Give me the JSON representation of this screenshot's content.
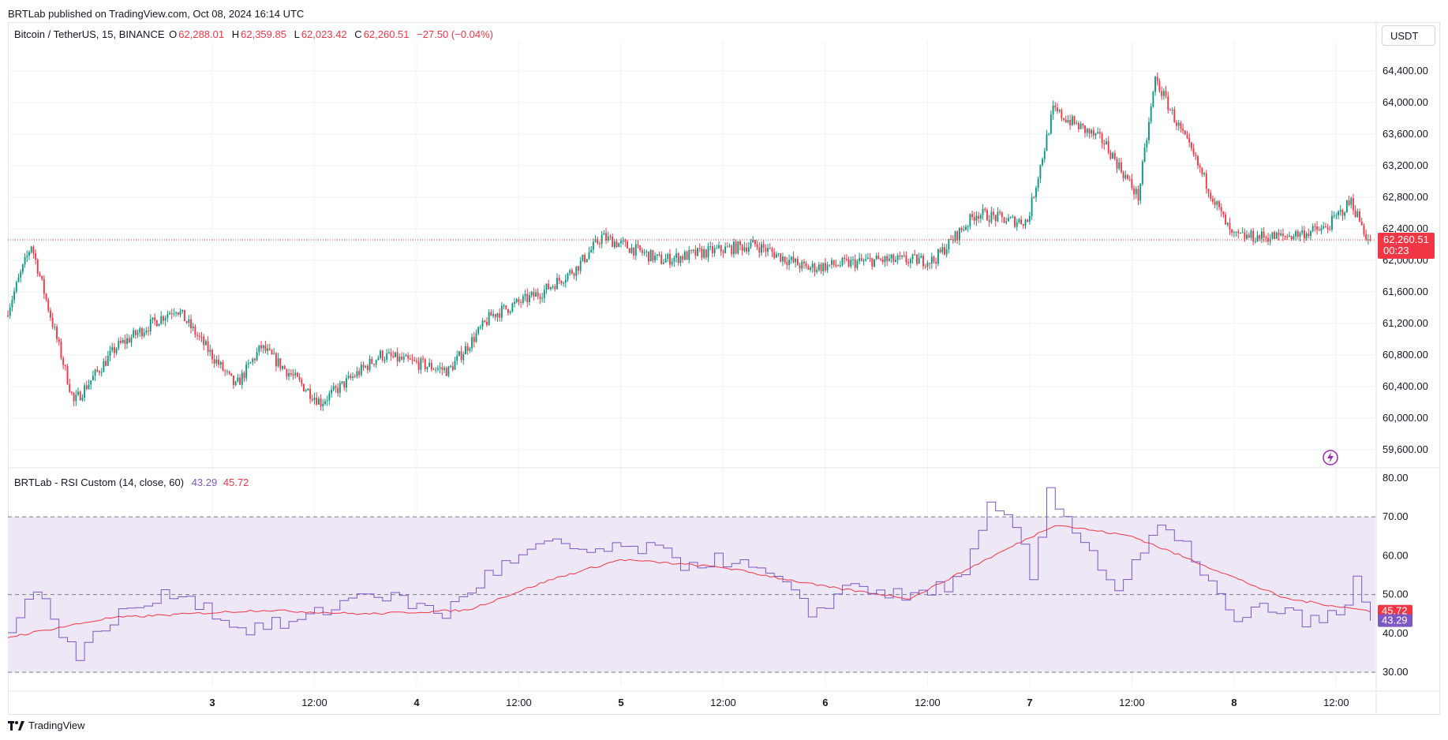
{
  "header": {
    "publish_line": "BRTLab published on TradingView.com, Oct 08, 2024 16:14 UTC",
    "symbol": "Bitcoin / TetherUS, 15, BINANCE",
    "o_label": "O",
    "o_value": "62,288.01",
    "h_label": "H",
    "h_value": "62,359.85",
    "l_label": "L",
    "l_value": "62,023.42",
    "c_label": "C",
    "c_value": "62,260.51",
    "change": "−27.50 (−0.04%)",
    "currency": "USDT"
  },
  "rsi_legend": {
    "name": "BRTLab - RSI Custom (14, close, 60)",
    "rsi_value": "43.29",
    "ma_value": "45.72"
  },
  "footer": {
    "brand": "TradingView"
  },
  "colors": {
    "up": "#089981",
    "down": "#f23645",
    "rsi_line": "#7e57c2",
    "rsi_ma": "#f23645",
    "band_fill": "#ede7f6",
    "ob_fill": "#e8f5e9"
  },
  "chart_data": [
    {
      "type": "candlestick",
      "title": "Bitcoin / TetherUS, 15, BINANCE",
      "ylim": [
        59400,
        64700
      ],
      "y_ticks": [
        "64,400.00",
        "64,000.00",
        "63,600.00",
        "63,200.00",
        "62,800.00",
        "62,400.00",
        "62,000.00",
        "61,600.00",
        "61,200.00",
        "60,800.00",
        "60,400.00",
        "60,000.00",
        "59,600.00"
      ],
      "x_ticks": [
        "3",
        "12:00",
        "4",
        "12:00",
        "5",
        "12:00",
        "6",
        "12:00",
        "7",
        "12:00",
        "8",
        "12:00"
      ],
      "last_price": "62,260.51",
      "countdown": "00:23",
      "approx_close_path": [
        {
          "t": "Oct 2 00:00",
          "price": 61300
        },
        {
          "t": "Oct 2 03:00",
          "price": 62200
        },
        {
          "t": "Oct 2 08:00",
          "price": 60200
        },
        {
          "t": "Oct 2 13:00",
          "price": 60900
        },
        {
          "t": "Oct 2 20:00",
          "price": 61400
        },
        {
          "t": "Oct 3 03:00",
          "price": 60400
        },
        {
          "t": "Oct 3 06:00",
          "price": 60900
        },
        {
          "t": "Oct 3 13:00",
          "price": 60200
        },
        {
          "t": "Oct 3 20:00",
          "price": 60800
        },
        {
          "t": "Oct 4 04:00",
          "price": 60600
        },
        {
          "t": "Oct 4 09:00",
          "price": 61300
        },
        {
          "t": "Oct 4 15:00",
          "price": 61600
        },
        {
          "t": "Oct 4 19:00",
          "price": 61900
        },
        {
          "t": "Oct 4 22:00",
          "price": 62300
        },
        {
          "t": "Oct 5 05:00",
          "price": 62000
        },
        {
          "t": "Oct 5 10:00",
          "price": 62100
        },
        {
          "t": "Oct 5 16:00",
          "price": 62200
        },
        {
          "t": "Oct 5 22:00",
          "price": 61900
        },
        {
          "t": "Oct 6 06:00",
          "price": 62000
        },
        {
          "t": "Oct 6 13:00",
          "price": 62000
        },
        {
          "t": "Oct 6 18:00",
          "price": 62600
        },
        {
          "t": "Oct 6 22:00",
          "price": 62500
        },
        {
          "t": "Oct 7 00:00",
          "price": 62500
        },
        {
          "t": "Oct 7 03:00",
          "price": 63900
        },
        {
          "t": "Oct 7 09:00",
          "price": 63500
        },
        {
          "t": "Oct 7 13:00",
          "price": 62800
        },
        {
          "t": "Oct 7 15:00",
          "price": 64300
        },
        {
          "t": "Oct 7 20:00",
          "price": 63200
        },
        {
          "t": "Oct 8 00:00",
          "price": 62300
        },
        {
          "t": "Oct 8 06:00",
          "price": 62300
        },
        {
          "t": "Oct 8 11:00",
          "price": 62400
        },
        {
          "t": "Oct 8 14:00",
          "price": 62750
        },
        {
          "t": "Oct 8 16:00",
          "price": 62260
        }
      ]
    },
    {
      "type": "line",
      "title": "BRTLab - RSI Custom (14, close, 60)",
      "ylim": [
        28,
        82
      ],
      "y_ticks": [
        "80.00",
        "70.00",
        "60.00",
        "50.00",
        "40.00",
        "30.00"
      ],
      "bands": {
        "upper": 70,
        "middle": 50,
        "lower": 30
      },
      "series": [
        {
          "name": "RSI",
          "current": "43.29",
          "points": [
            {
              "t": "Oct 2 00:00",
              "v": 42
            },
            {
              "t": "Oct 2 03:00",
              "v": 51
            },
            {
              "t": "Oct 2 08:00",
              "v": 34
            },
            {
              "t": "Oct 2 12:00",
              "v": 44
            },
            {
              "t": "Oct 2 20:00",
              "v": 51
            },
            {
              "t": "Oct 3 03:00",
              "v": 41
            },
            {
              "t": "Oct 3 10:00",
              "v": 43
            },
            {
              "t": "Oct 3 18:00",
              "v": 51
            },
            {
              "t": "Oct 4 03:00",
              "v": 45
            },
            {
              "t": "Oct 4 08:00",
              "v": 55
            },
            {
              "t": "Oct 4 15:00",
              "v": 63
            },
            {
              "t": "Oct 4 20:00",
              "v": 61
            },
            {
              "t": "Oct 5 03:00",
              "v": 62
            },
            {
              "t": "Oct 5 07:00",
              "v": 58
            },
            {
              "t": "Oct 5 12:00",
              "v": 59
            },
            {
              "t": "Oct 5 18:00",
              "v": 54
            },
            {
              "t": "Oct 5 22:00",
              "v": 45
            },
            {
              "t": "Oct 6 03:00",
              "v": 53
            },
            {
              "t": "Oct 6 09:00",
              "v": 49
            },
            {
              "t": "Oct 6 16:00",
              "v": 54
            },
            {
              "t": "Oct 6 19:00",
              "v": 72
            },
            {
              "t": "Oct 6 22:00",
              "v": 68
            },
            {
              "t": "Oct 7 00:00",
              "v": 54
            },
            {
              "t": "Oct 7 02:00",
              "v": 77
            },
            {
              "t": "Oct 7 05:00",
              "v": 67
            },
            {
              "t": "Oct 7 10:00",
              "v": 51
            },
            {
              "t": "Oct 7 15:00",
              "v": 67
            },
            {
              "t": "Oct 7 19:00",
              "v": 60
            },
            {
              "t": "Oct 8 00:00",
              "v": 42
            },
            {
              "t": "Oct 8 03:00",
              "v": 47
            },
            {
              "t": "Oct 8 09:00",
              "v": 43
            },
            {
              "t": "Oct 8 13:00",
              "v": 46
            },
            {
              "t": "Oct 8 14:00",
              "v": 54
            },
            {
              "t": "Oct 8 16:00",
              "v": 43.29
            }
          ]
        },
        {
          "name": "MA",
          "current": "45.72",
          "points": [
            {
              "t": "Oct 2 00:00",
              "v": 39
            },
            {
              "t": "Oct 2 12:00",
              "v": 44
            },
            {
              "t": "Oct 3 06:00",
              "v": 46
            },
            {
              "t": "Oct 3 18:00",
              "v": 45
            },
            {
              "t": "Oct 4 06:00",
              "v": 46
            },
            {
              "t": "Oct 4 16:00",
              "v": 54
            },
            {
              "t": "Oct 5 00:00",
              "v": 59
            },
            {
              "t": "Oct 5 12:00",
              "v": 57
            },
            {
              "t": "Oct 6 00:00",
              "v": 52
            },
            {
              "t": "Oct 6 10:00",
              "v": 49
            },
            {
              "t": "Oct 6 18:00",
              "v": 58
            },
            {
              "t": "Oct 7 03:00",
              "v": 68
            },
            {
              "t": "Oct 7 12:00",
              "v": 65
            },
            {
              "t": "Oct 7 20:00",
              "v": 58
            },
            {
              "t": "Oct 8 06:00",
              "v": 49
            },
            {
              "t": "Oct 8 16:00",
              "v": 45.72
            }
          ]
        }
      ]
    }
  ]
}
